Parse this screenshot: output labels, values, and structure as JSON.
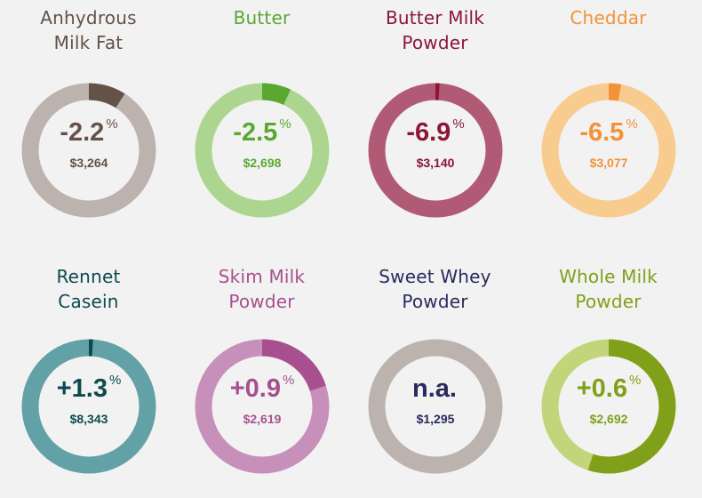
{
  "products": [
    {
      "title": [
        "Anhydrous",
        "Milk Fat"
      ],
      "change": "-2.2",
      "unit": "%",
      "price": "$3,264",
      "fill": 0.09,
      "color": "#645148",
      "track": "#bcb2ae"
    },
    {
      "title": [
        "Butter",
        ""
      ],
      "change": "-2.5",
      "unit": "%",
      "price": "$2,698",
      "fill": 0.07,
      "color": "#5aa832",
      "track": "#acd68f"
    },
    {
      "title": [
        "Butter Milk",
        "Powder"
      ],
      "change": "-6.9",
      "unit": "%",
      "price": "$3,140",
      "fill": 0.01,
      "color": "#8c1538",
      "track": "#b05a75"
    },
    {
      "title": [
        "Cheddar",
        ""
      ],
      "change": "-6.5",
      "unit": "%",
      "price": "$3,077",
      "fill": 0.03,
      "color": "#f39237",
      "track": "#f8cc8f"
    },
    {
      "title": [
        "Rennet",
        "Casein"
      ],
      "change": "+1.3",
      "unit": "%",
      "price": "$8,343",
      "fill": 0.01,
      "color": "#0d4a4f",
      "track": "#62a1a6"
    },
    {
      "title": [
        "Skim Milk",
        "Powder"
      ],
      "change": "+0.9",
      "unit": "%",
      "price": "$2,619",
      "fill": 0.2,
      "color": "#a8508f",
      "track": "#c690bb"
    },
    {
      "title": [
        "Sweet Whey",
        "Powder"
      ],
      "change": "n.a.",
      "unit": "",
      "price": "$1,295",
      "fill": 0,
      "color": "#2a2a5f",
      "track": "#bcb2ae"
    },
    {
      "title": [
        "Whole Milk",
        "Powder"
      ],
      "change": "+0.6",
      "unit": "%",
      "price": "$2,692",
      "fill": 0.55,
      "color": "#80a01a",
      "track": "#c3d57a"
    }
  ]
}
